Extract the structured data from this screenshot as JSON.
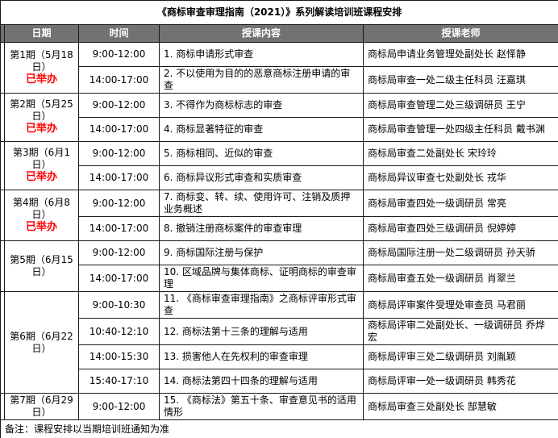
{
  "title": "《商标审查审理指南（2021）》系列解读培训班课程安排",
  "columns": [
    "日期",
    "时间",
    "授课内容",
    "授课老师"
  ],
  "colors": {
    "page_bg": "#ffffff",
    "header_bg": "#727272",
    "header_text": "#ffffff",
    "row_blue": "#81A9DD",
    "row_white": "#ffffff",
    "held": "#FF0000",
    "border": "#1a1a1a"
  },
  "periods": [
    {
      "date": "第1期（5月18日）",
      "status": "已举办",
      "held": true,
      "rows": [
        {
          "time": "9:00-12:00",
          "content": "1. 商标申请形式审查",
          "teacher": "商标局申请业务管理处副处长 赵怿静"
        },
        {
          "time": "14:00-17:00",
          "content": "2. 不以使用为目的的恶意商标注册申请的审查",
          "teacher": "商标局审查一处二级主任科员 汪嘉琪"
        }
      ]
    },
    {
      "date": "第2期（5月25日）",
      "status": "已举办",
      "held": true,
      "rows": [
        {
          "time": "9:00-12:00",
          "content": "3. 不得作为商标标志的审查",
          "teacher": "商标局审查管理二处三级调研员 王宁"
        },
        {
          "time": "14:00-17:00",
          "content": "4. 商标显著特征的审查",
          "teacher": "商标局审查管理一处四级主任科员 戴书渊"
        }
      ]
    },
    {
      "date": "第3期（6月1日）",
      "status": "已举办",
      "held": true,
      "rows": [
        {
          "time": "9:00-12:00",
          "content": "5. 商标相同、近似的审查",
          "teacher": "商标局审查二处副处长 宋玲玲"
        },
        {
          "time": "14:00-17:00",
          "content": "6. 商标异议形式审查和实质审查",
          "teacher": "商标局异议审查七处副处长 戎华"
        }
      ]
    },
    {
      "date": "第4期（6月8日）",
      "status": "已举办",
      "held": true,
      "rows": [
        {
          "time": "9:00-12:00",
          "content": "7. 商标变、转、续、使用许可、注销及质押业务概述",
          "teacher": "商标局审查四处一级调研员 常亮"
        },
        {
          "time": "14:00-17:00",
          "content": "8. 撤销注册商标案件的审查审理",
          "teacher": "商标局审查四处三级调研员 倪婷婷"
        }
      ]
    },
    {
      "date": "第5期（6月15日）",
      "status": "",
      "held": false,
      "rows": [
        {
          "time": "9:00-12:00",
          "content": "9. 商标国际注册与保护",
          "teacher": "商标局国际注册一处二级调研员 孙天骄"
        },
        {
          "time": "14:00-17:00",
          "content": "10. 区域品牌与集体商标、证明商标的审查审理",
          "teacher": "商标局审查五处一级调研员 肖翠兰"
        }
      ]
    },
    {
      "date": "第6期（6月22日）",
      "status": "",
      "held": false,
      "rows": [
        {
          "time": "9:00-10:30",
          "content": "11. 《商标审查审理指南》之商标评审形式审查",
          "teacher": "商标局评审案件受理处审查员  马君丽"
        },
        {
          "time": "10:40-12:10",
          "content": "12. 商标法第十三条的理解与适用",
          "teacher": "商标局评审二处副处长、一级调研员 乔烨宏"
        },
        {
          "time": "14:00-15:30",
          "content": "13. 损害他人在先权利的审查审理",
          "teacher": "商标局评审三处二级调研员 刘胤颖"
        },
        {
          "time": "15:40-17:10",
          "content": "14. 商标法第四十四条的理解与适用",
          "teacher": "商标局评审一处一级调研员 韩秀花"
        }
      ]
    },
    {
      "date": "第7期（6月29日）",
      "status": "",
      "held": false,
      "rows": [
        {
          "time": "9:00-12:00",
          "content": "15. 《商标法》第五十条、审查意见书的适用情形",
          "teacher": "商标局审查三处副处长 郜慧敏"
        }
      ]
    }
  ],
  "note": "备注：课程安排以当期培训班通知为准"
}
